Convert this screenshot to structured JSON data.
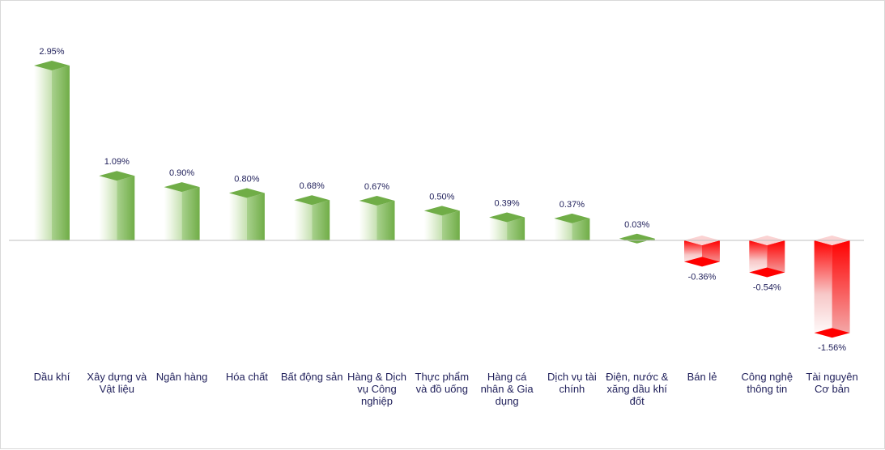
{
  "chart_data": {
    "type": "bar",
    "categories": [
      "Dầu khí",
      "Xây dựng và Vật liệu",
      "Ngân hàng",
      "Hóa chất",
      "Bất động sản",
      "Hàng & Dịch vụ Công nghiệp",
      "Thực phẩm và đồ uống",
      "Hàng cá nhân & Gia dụng",
      "Dịch vụ tài chính",
      "Điện, nước & xăng dầu khí đốt",
      "Bán lẻ",
      "Công nghệ thông tin",
      "Tài nguyên Cơ bản"
    ],
    "category_lines": [
      [
        "Dầu khí"
      ],
      [
        "Xây dựng và",
        "Vật liệu"
      ],
      [
        "Ngân hàng"
      ],
      [
        "Hóa chất"
      ],
      [
        "Bất động sản"
      ],
      [
        "Hàng & Dịch",
        "vụ Công",
        "nghiệp"
      ],
      [
        "Thực phẩm",
        "và đồ uống"
      ],
      [
        "Hàng cá",
        "nhân & Gia",
        "dụng"
      ],
      [
        "Dịch vụ tài",
        "chính"
      ],
      [
        "Điện, nước &",
        "xăng dầu khí",
        "đốt"
      ],
      [
        "Bán lẻ"
      ],
      [
        "Công nghệ",
        "thông tin"
      ],
      [
        "Tài nguyên",
        "Cơ bản"
      ]
    ],
    "values": [
      2.95,
      1.09,
      0.9,
      0.8,
      0.68,
      0.67,
      0.5,
      0.39,
      0.37,
      0.03,
      -0.36,
      -0.54,
      -1.56
    ],
    "value_labels": [
      "2.95%",
      "1.09%",
      "0.90%",
      "0.80%",
      "0.68%",
      "0.67%",
      "0.50%",
      "0.39%",
      "0.37%",
      "0.03%",
      "-0.36%",
      "-0.54%",
      "-1.56%"
    ],
    "unit": "%",
    "colors": {
      "positive": "#70ad47",
      "positive_light": "#eef6e6",
      "negative": "#ff0000",
      "negative_light": "#fde8e8",
      "axis": "#bfbfbf",
      "text": "#1f1f5a"
    },
    "grid": false,
    "legend": "none"
  }
}
